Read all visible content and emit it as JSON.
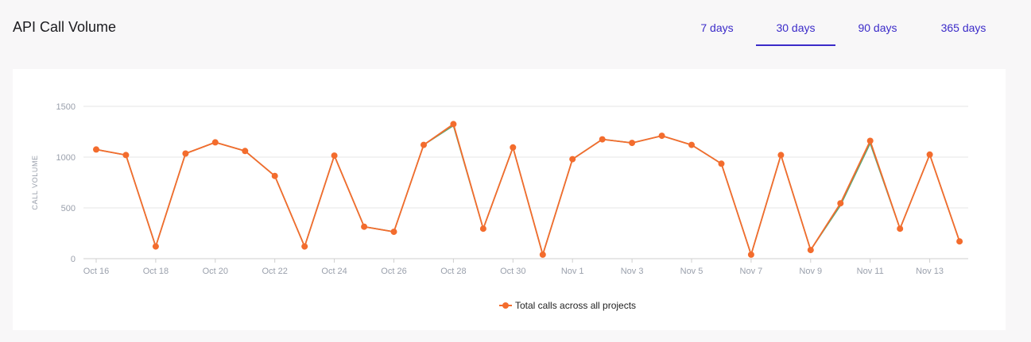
{
  "header": {
    "title": "API Call Volume",
    "tabs": [
      {
        "label": "7 days",
        "active": false
      },
      {
        "label": "30 days",
        "active": true
      },
      {
        "label": "90 days",
        "active": false
      },
      {
        "label": "365 days",
        "active": false
      }
    ]
  },
  "colors": {
    "accent": "#3b2bc9",
    "series_primary": "#f36c2d",
    "series_secondary": "#5aa874",
    "grid": "#e6e6e6",
    "axis_text": "#9aa0ac"
  },
  "chart_data": {
    "type": "line",
    "ylabel": "CALL VOLUME",
    "ylim": [
      0,
      1500
    ],
    "yticks": [
      0,
      500,
      1000,
      1500
    ],
    "grid": true,
    "legend_position": "bottom-center",
    "x": [
      "Oct 16",
      "Oct 17",
      "Oct 18",
      "Oct 19",
      "Oct 20",
      "Oct 21",
      "Oct 22",
      "Oct 23",
      "Oct 24",
      "Oct 25",
      "Oct 26",
      "Oct 27",
      "Oct 28",
      "Oct 29",
      "Oct 30",
      "Oct 31",
      "Nov 1",
      "Nov 2",
      "Nov 3",
      "Nov 4",
      "Nov 5",
      "Nov 6",
      "Nov 7",
      "Nov 8",
      "Nov 9",
      "Nov 10",
      "Nov 11",
      "Nov 12",
      "Nov 13",
      "Nov 14"
    ],
    "xtick_labels": [
      "Oct 16",
      "Oct 18",
      "Oct 20",
      "Oct 22",
      "Oct 24",
      "Oct 26",
      "Oct 28",
      "Oct 30",
      "Nov 1",
      "Nov 3",
      "Nov 5",
      "Nov 7",
      "Nov 9",
      "Nov 11",
      "Nov 13"
    ],
    "series": [
      {
        "name": "Total calls across all projects",
        "values": [
          1075,
          1020,
          120,
          1035,
          1145,
          1060,
          815,
          120,
          1015,
          315,
          265,
          1120,
          1325,
          295,
          1095,
          40,
          980,
          1175,
          1140,
          1210,
          1120,
          935,
          40,
          1020,
          85,
          545,
          1160,
          295,
          1025,
          170
        ]
      },
      {
        "values": [
          1075,
          1020,
          120,
          1035,
          1145,
          1060,
          815,
          120,
          1015,
          315,
          265,
          1120,
          1310,
          295,
          1095,
          40,
          980,
          1175,
          1140,
          1210,
          1120,
          935,
          40,
          1020,
          85,
          525,
          1135,
          295,
          1025,
          170
        ]
      }
    ]
  }
}
